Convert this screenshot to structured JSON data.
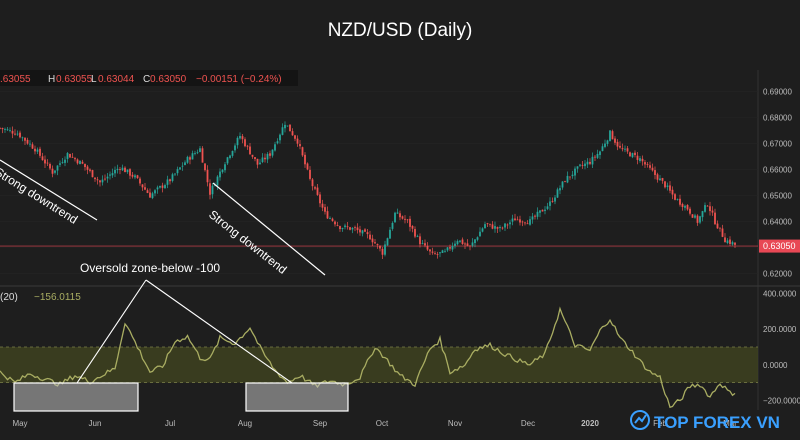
{
  "title": "NZD/USD (Daily)",
  "ohlc": {
    "o_value": ".63055",
    "h_label": "H",
    "h_value": "0.63055",
    "l_label": "L",
    "l_value": "0.63044",
    "c_label": "C",
    "c_value": "0.63050",
    "change": "−0.00151 (−0.24%)"
  },
  "colors": {
    "background": "#1e1e1e",
    "up": "#26a69a",
    "down": "#ef5350",
    "cci_line": "#a9ad62",
    "band_fill": "#3e4220",
    "annotation": "#ffffff",
    "label_text": "#e0e0e0",
    "price_tag": "#e84855",
    "brand": "#3aa0ff"
  },
  "chart_data": [
    {
      "type": "candlestick",
      "x_labels": [
        "May",
        "Jun",
        "Jul",
        "Aug",
        "Sep",
        "Oct",
        "Nov",
        "Dec",
        "2020",
        "Feb",
        "Mar"
      ],
      "yaxis": {
        "ticks": [
          "0.69000",
          "0.68000",
          "0.67000",
          "0.66000",
          "0.65000",
          "0.64000",
          "0.63000",
          "0.62000"
        ],
        "ylim": [
          0.6155,
          0.6945
        ]
      },
      "last_price_tag": "0.63050",
      "last_price": 0.6305,
      "close_path": [
        [
          0,
          0.676
        ],
        [
          7,
          0.674
        ],
        [
          14,
          0.668
        ],
        [
          21,
          0.659
        ],
        [
          27,
          0.666
        ],
        [
          33,
          0.662
        ],
        [
          40,
          0.655
        ],
        [
          48,
          0.661
        ],
        [
          54,
          0.657
        ],
        [
          60,
          0.65
        ],
        [
          68,
          0.656
        ],
        [
          75,
          0.664
        ],
        [
          80,
          0.668
        ],
        [
          84,
          0.651
        ],
        [
          90,
          0.663
        ],
        [
          96,
          0.673
        ],
        [
          103,
          0.662
        ],
        [
          108,
          0.666
        ],
        [
          114,
          0.678
        ],
        [
          119,
          0.671
        ],
        [
          124,
          0.656
        ],
        [
          130,
          0.643
        ],
        [
          136,
          0.638
        ],
        [
          142,
          0.637
        ],
        [
          148,
          0.634
        ],
        [
          153,
          0.628
        ],
        [
          158,
          0.643
        ],
        [
          163,
          0.64
        ],
        [
          168,
          0.632
        ],
        [
          173,
          0.627
        ],
        [
          178,
          0.628
        ],
        [
          183,
          0.633
        ],
        [
          188,
          0.63
        ],
        [
          194,
          0.639
        ],
        [
          200,
          0.637
        ],
        [
          206,
          0.641
        ],
        [
          212,
          0.64
        ],
        [
          220,
          0.647
        ],
        [
          226,
          0.656
        ],
        [
          232,
          0.661
        ],
        [
          236,
          0.663
        ],
        [
          240,
          0.667
        ],
        [
          244,
          0.674
        ],
        [
          248,
          0.668
        ],
        [
          252,
          0.666
        ],
        [
          256,
          0.664
        ],
        [
          262,
          0.658
        ],
        [
          266,
          0.654
        ],
        [
          270,
          0.649
        ],
        [
          275,
          0.645
        ],
        [
          279,
          0.64
        ],
        [
          283,
          0.647
        ],
        [
          286,
          0.64
        ],
        [
          290,
          0.633
        ],
        [
          294,
          0.631
        ]
      ],
      "annotations": [
        "Strong downtrend",
        "Strong downtrend"
      ]
    },
    {
      "type": "line",
      "series": [
        {
          "name": "(20)",
          "last_value": "−156.0115"
        }
      ],
      "yaxis": {
        "ticks": [
          "400.0000",
          "200.0000",
          "0.0000",
          "−200.0000"
        ],
        "ylim": [
          -265,
          420
        ]
      },
      "band": [
        -100,
        100
      ],
      "cci_path": [
        [
          0,
          -40
        ],
        [
          6,
          -100
        ],
        [
          12,
          -50
        ],
        [
          18,
          -80
        ],
        [
          24,
          -110
        ],
        [
          30,
          -60
        ],
        [
          36,
          -95
        ],
        [
          42,
          -50
        ],
        [
          46,
          -20
        ],
        [
          50,
          240
        ],
        [
          55,
          100
        ],
        [
          60,
          -40
        ],
        [
          65,
          -10
        ],
        [
          70,
          130
        ],
        [
          75,
          160
        ],
        [
          80,
          40
        ],
        [
          84,
          30
        ],
        [
          88,
          150
        ],
        [
          94,
          120
        ],
        [
          100,
          210
        ],
        [
          105,
          70
        ],
        [
          110,
          -30
        ],
        [
          115,
          -100
        ],
        [
          120,
          -60
        ],
        [
          126,
          -120
        ],
        [
          132,
          -90
        ],
        [
          138,
          -110
        ],
        [
          144,
          -70
        ],
        [
          150,
          100
        ],
        [
          154,
          40
        ],
        [
          160,
          -60
        ],
        [
          166,
          -110
        ],
        [
          172,
          90
        ],
        [
          176,
          140
        ],
        [
          180,
          -40
        ],
        [
          186,
          0
        ],
        [
          190,
          90
        ],
        [
          196,
          110
        ],
        [
          202,
          60
        ],
        [
          208,
          20
        ],
        [
          212,
          0
        ],
        [
          218,
          60
        ],
        [
          224,
          310
        ],
        [
          230,
          110
        ],
        [
          236,
          80
        ],
        [
          240,
          190
        ],
        [
          244,
          260
        ],
        [
          248,
          150
        ],
        [
          252,
          90
        ],
        [
          256,
          20
        ],
        [
          260,
          -40
        ],
        [
          264,
          -70
        ],
        [
          268,
          -240
        ],
        [
          272,
          -200
        ],
        [
          276,
          -120
        ],
        [
          280,
          -110
        ],
        [
          284,
          -180
        ],
        [
          288,
          -100
        ],
        [
          292,
          -160
        ],
        [
          294,
          -156
        ]
      ],
      "annotations": [
        "Oversold zone-below -100"
      ]
    }
  ],
  "brand": {
    "text": "TOP FOREX VN"
  }
}
